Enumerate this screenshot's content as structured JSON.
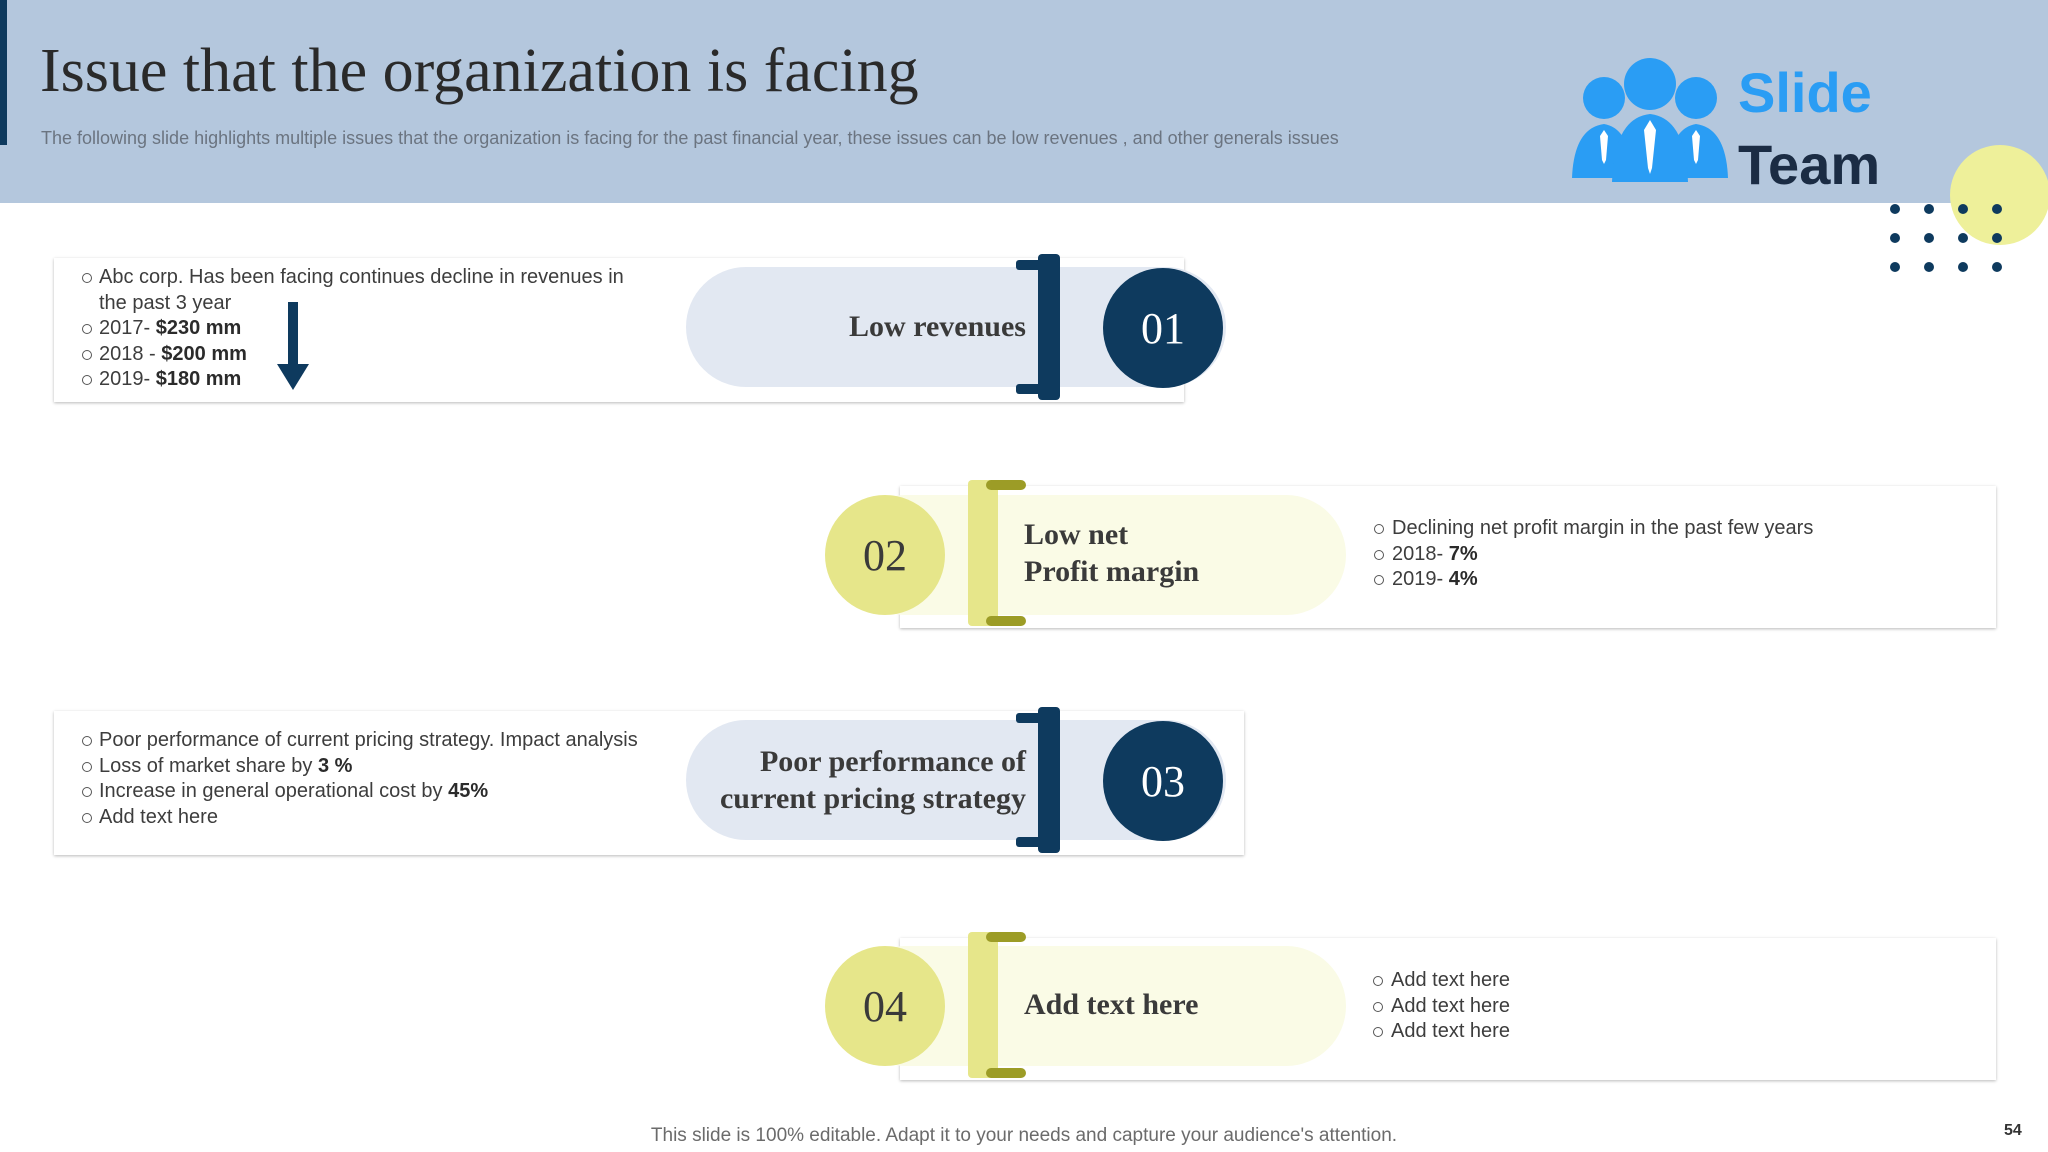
{
  "slide": {
    "title": "Issue that the organization is facing",
    "subtitle": "The following slide highlights multiple issues that the organization is facing for the past financial year, these issues can be low revenues , and other generals issues",
    "footer": "This slide is 100% editable. Adapt it to your needs and capture your audience's attention.",
    "page_number": "54"
  },
  "logo": {
    "line1": "Slide",
    "line2": "Team",
    "icon": "people-group-icon"
  },
  "colors": {
    "header_bg": "#b4c7dd",
    "navy": "#0e3a5e",
    "yellow": "#e6e68a",
    "pale_yellow": "#fafbe6",
    "pale_blue": "#e2e8f2",
    "logo_blue": "#2a9df4"
  },
  "issues": [
    {
      "number": "01",
      "label_lines": [
        "Low revenues"
      ],
      "bullets": [
        [
          "Abc corp. Has been facing continues decline in revenues  in",
          "the past 3 year"
        ],
        [
          "2017- ",
          "$230 mm"
        ],
        [
          "2018 - ",
          "$200 mm"
        ],
        [
          "2019- ",
          "$180 mm"
        ]
      ],
      "trend_icon": "arrow-down-icon"
    },
    {
      "number": "02",
      "label_lines": [
        "Low net",
        "Profit margin"
      ],
      "bullets": [
        [
          "Declining net profit margin in the past few years"
        ],
        [
          "2018- ",
          "7%"
        ],
        [
          "2019- ",
          "4%"
        ]
      ]
    },
    {
      "number": "03",
      "label_lines": [
        "Poor performance of",
        "current pricing strategy"
      ],
      "bullets": [
        [
          "Poor performance  of current pricing strategy. Impact analysis"
        ],
        [
          "Loss of market share by ",
          "3 %"
        ],
        [
          "Increase in general operational cost by ",
          "45%"
        ],
        [
          "Add text here"
        ]
      ]
    },
    {
      "number": "04",
      "label_lines": [
        "Add text here"
      ],
      "bullets": [
        [
          "Add text here"
        ],
        [
          "Add text here"
        ],
        [
          "Add text here"
        ]
      ]
    }
  ]
}
